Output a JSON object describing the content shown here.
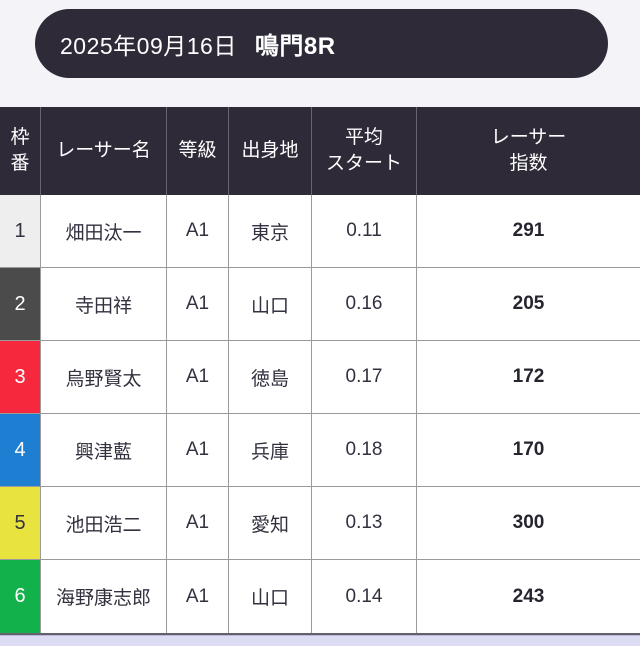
{
  "page": {
    "bg_color": "#f4f3f8",
    "bottom_strip_color": "#dcdcf4"
  },
  "header": {
    "date": "2025年09月16日",
    "race": "鳴門8R",
    "bg_color": "#2e2a38",
    "text_color": "#ffffff"
  },
  "table": {
    "header_bg": "#2e2a38",
    "header_text_color": "#ffffff",
    "border_color": "#9a9a9a",
    "columns": [
      {
        "key": "num",
        "label": "枠\n番"
      },
      {
        "key": "name",
        "label": "レーサー名"
      },
      {
        "key": "grade",
        "label": "等級"
      },
      {
        "key": "origin",
        "label": "出身地"
      },
      {
        "key": "avg_start",
        "label": "平均\nスタート"
      },
      {
        "key": "index",
        "label": "レーサー\n指数"
      }
    ],
    "rows": [
      {
        "num": "1",
        "name": "畑田汰一",
        "grade": "A1",
        "origin": "東京",
        "avg_start": "0.11",
        "index": "291",
        "frame_bg": "#eeeeee",
        "frame_text": "#33313f"
      },
      {
        "num": "2",
        "name": "寺田祥",
        "grade": "A1",
        "origin": "山口",
        "avg_start": "0.16",
        "index": "205",
        "frame_bg": "#4b4b4b",
        "frame_text": "#ffffff"
      },
      {
        "num": "3",
        "name": "烏野賢太",
        "grade": "A1",
        "origin": "徳島",
        "avg_start": "0.17",
        "index": "172",
        "frame_bg": "#f5283e",
        "frame_text": "#ffffff"
      },
      {
        "num": "4",
        "name": "興津藍",
        "grade": "A1",
        "origin": "兵庫",
        "avg_start": "0.18",
        "index": "170",
        "frame_bg": "#1e7fd2",
        "frame_text": "#ffffff"
      },
      {
        "num": "5",
        "name": "池田浩二",
        "grade": "A1",
        "origin": "愛知",
        "avg_start": "0.13",
        "index": "300",
        "frame_bg": "#e8e33e",
        "frame_text": "#33313f"
      },
      {
        "num": "6",
        "name": "海野康志郎",
        "grade": "A1",
        "origin": "山口",
        "avg_start": "0.14",
        "index": "243",
        "frame_bg": "#12b14b",
        "frame_text": "#ffffff"
      }
    ]
  }
}
